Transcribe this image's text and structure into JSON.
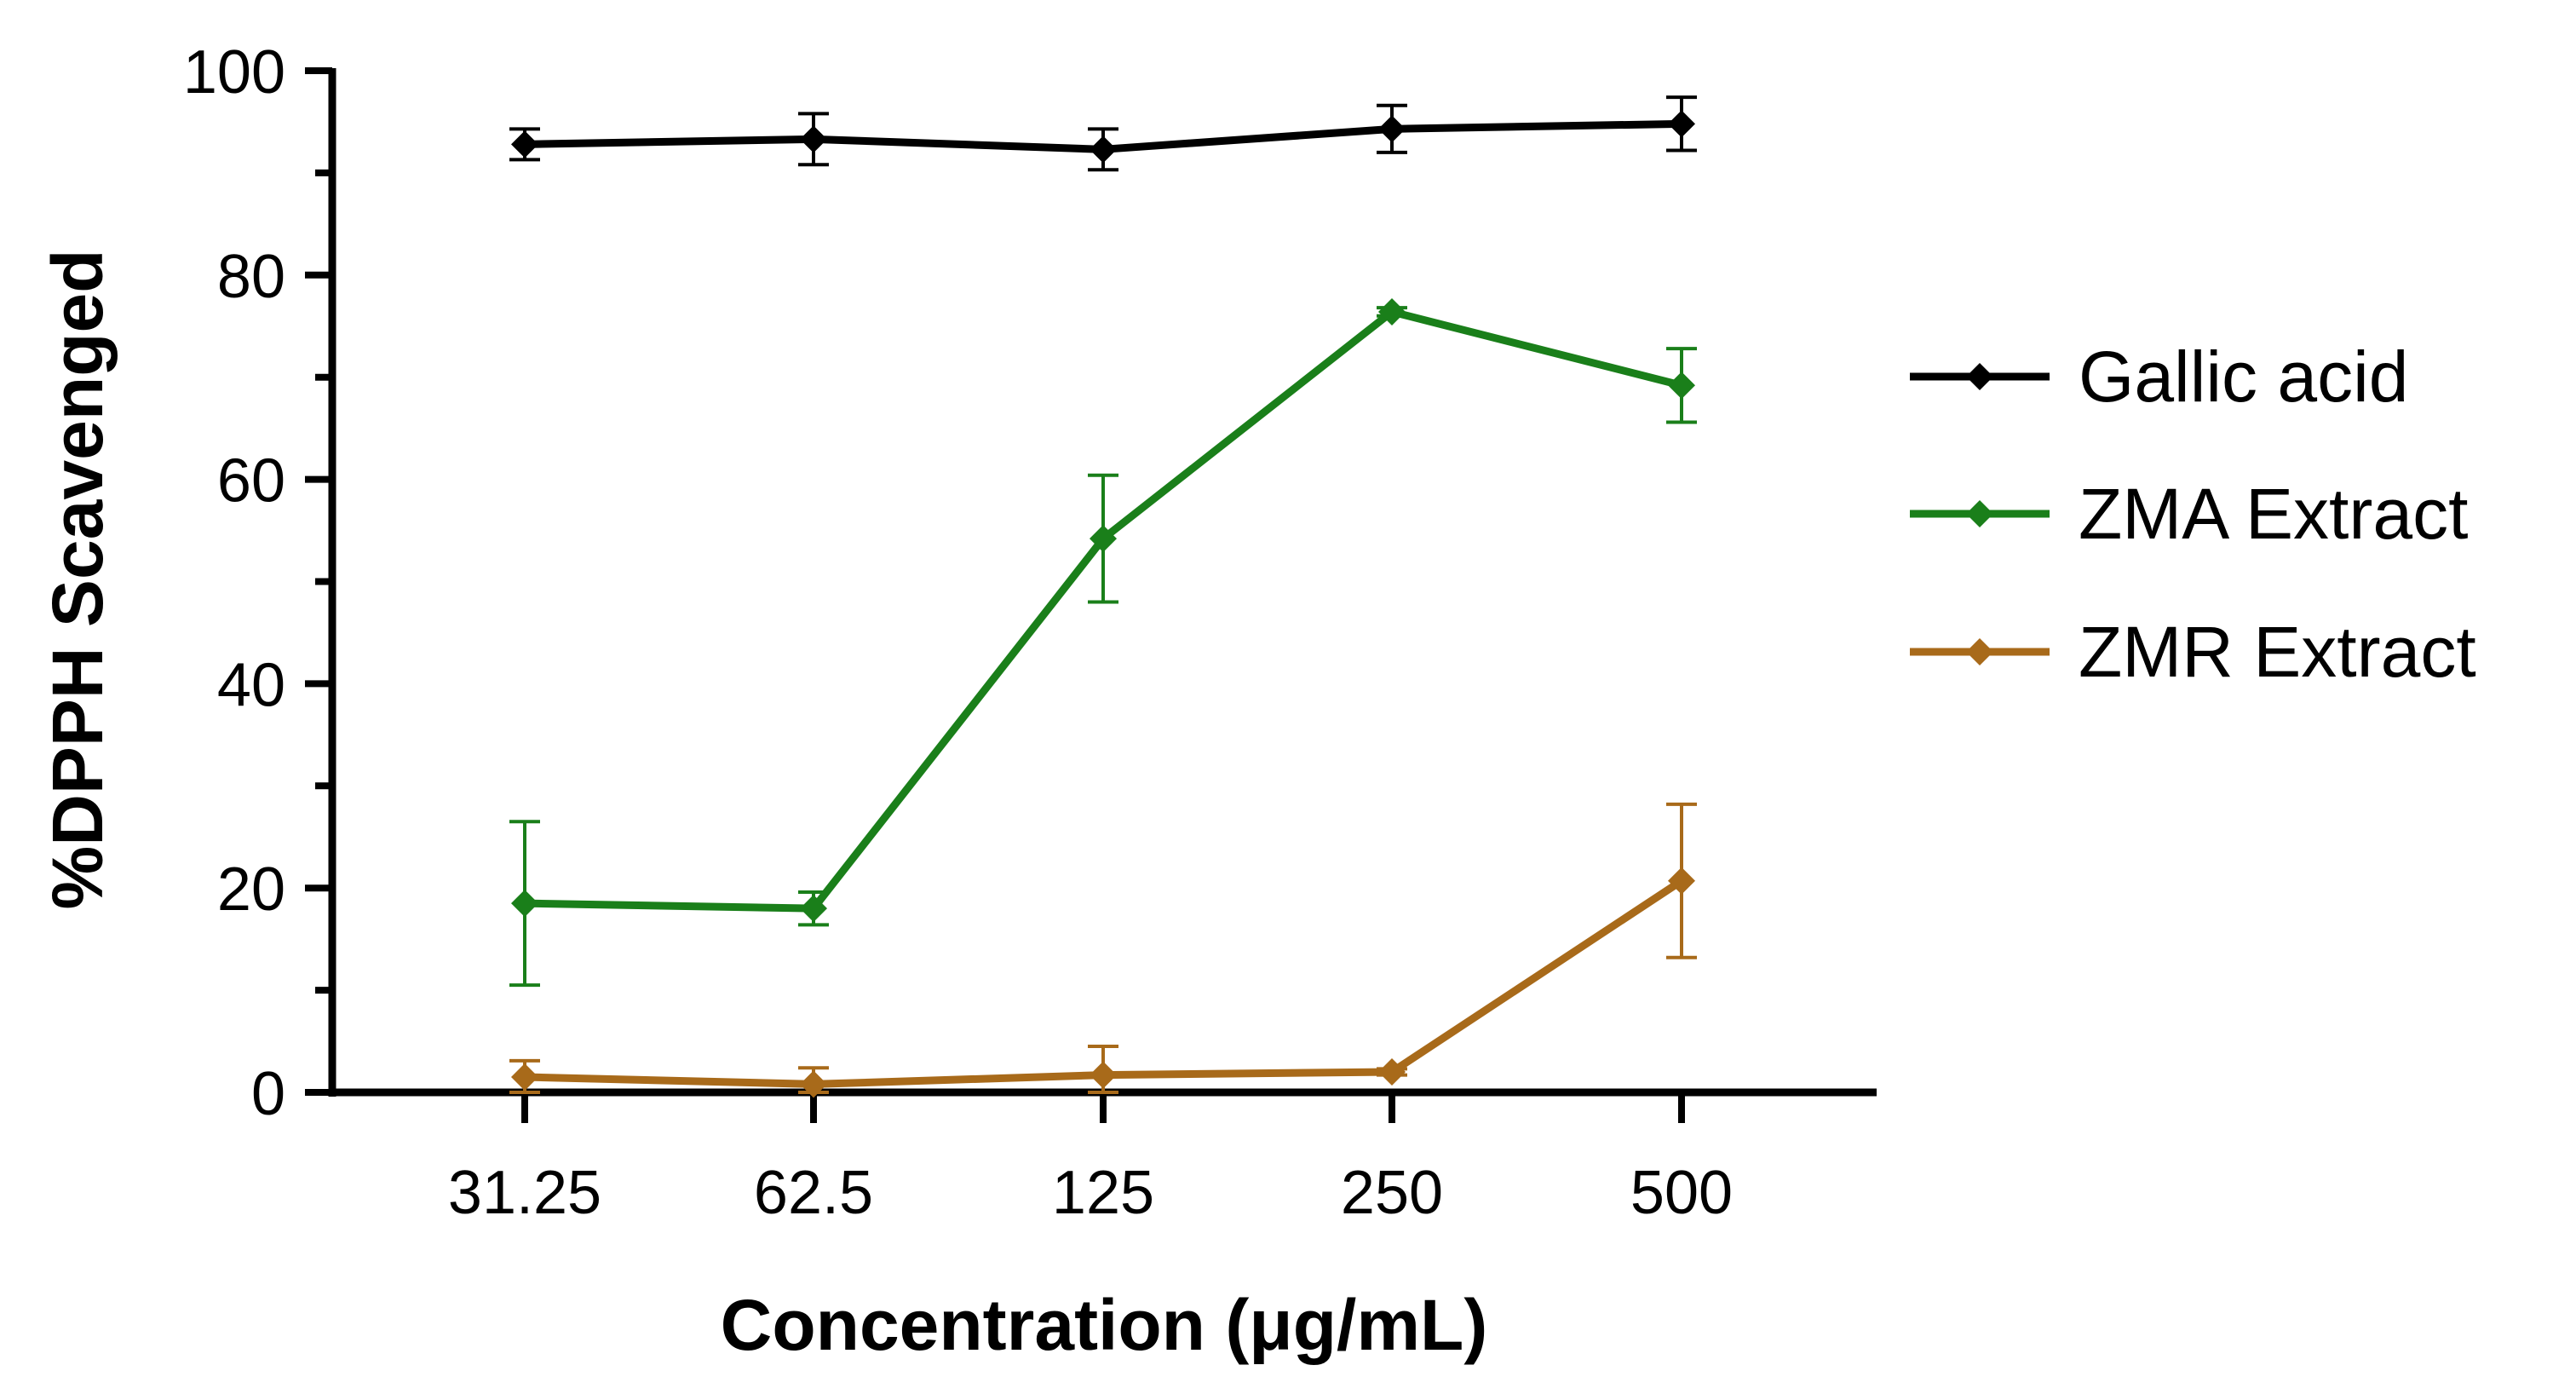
{
  "chart_data": {
    "type": "line",
    "title": "",
    "xlabel": "Concentration (μg/mL)",
    "ylabel": "%DPPH Scavenged",
    "categories": [
      "31.25",
      "62.5",
      "125",
      "250",
      "500"
    ],
    "ylim": [
      0,
      100
    ],
    "yticks": [
      0,
      20,
      40,
      60,
      80,
      100
    ],
    "grid": false,
    "legend_position": "right",
    "series": [
      {
        "name": "Gallic acid",
        "color": "#000000",
        "values": [
          92.8,
          93.3,
          92.3,
          94.3,
          94.8
        ],
        "errors": [
          1.5,
          2.5,
          2.0,
          2.3,
          2.6
        ]
      },
      {
        "name": "ZMA Extract",
        "color": "#1a7f1a",
        "values": [
          18.5,
          18.0,
          54.2,
          76.4,
          69.2
        ],
        "errors": [
          8.0,
          1.6,
          6.2,
          0.4,
          3.6
        ]
      },
      {
        "name": "ZMR Extract",
        "color": "#a86a1a",
        "values": [
          1.5,
          0.8,
          1.7,
          2.0,
          20.7
        ],
        "errors": [
          1.6,
          1.6,
          2.8,
          0.3,
          7.5
        ]
      }
    ]
  }
}
